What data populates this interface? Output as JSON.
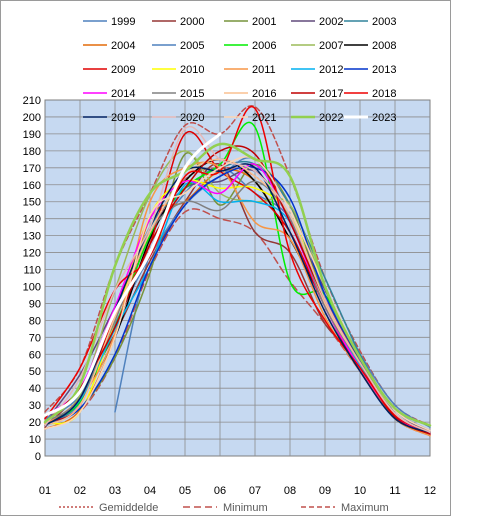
{
  "chart_data": {
    "type": "line",
    "title": "",
    "xlabel": "",
    "ylabel": "",
    "x_categories": [
      "01",
      "02",
      "03",
      "04",
      "05",
      "06",
      "07",
      "08",
      "09",
      "10",
      "11",
      "12"
    ],
    "ylim": [
      0,
      210
    ],
    "y_ticks": [
      "0",
      "10",
      "20",
      "30",
      "40",
      "50",
      "60",
      "70",
      "80",
      "90",
      "100",
      "110",
      "120",
      "130",
      "140",
      "150",
      "160",
      "170",
      "180",
      "190",
      "200",
      "210"
    ],
    "grid": true,
    "plot_background": "#c6d9f1",
    "legend_position": "top (inside plot, 3 columns x 5 rows) and bottom for statistics",
    "series": [
      {
        "name": "1999",
        "color": "#4f81bd",
        "dash": "",
        "width": 1.5,
        "values": [
          null,
          null,
          26,
          120,
          155,
          170,
          155,
          140,
          95,
          60,
          30,
          17
        ]
      },
      {
        "name": "2000",
        "color": "#953735",
        "dash": "",
        "width": 1.5,
        "values": [
          17,
          38,
          72,
          115,
          150,
          172,
          132,
          120,
          78,
          58,
          25,
          12
        ]
      },
      {
        "name": "2001",
        "color": "#77933c",
        "dash": "",
        "width": 1.5,
        "values": [
          18,
          28,
          58,
          108,
          178,
          148,
          172,
          148,
          92,
          52,
          22,
          13
        ]
      },
      {
        "name": "2002",
        "color": "#604a7b",
        "dash": "",
        "width": 1.5,
        "values": [
          20,
          48,
          88,
          132,
          158,
          162,
          168,
          140,
          98,
          58,
          27,
          14
        ]
      },
      {
        "name": "2003",
        "color": "#31849b",
        "dash": "",
        "width": 1.5,
        "values": [
          19,
          32,
          85,
          135,
          158,
          170,
          172,
          148,
          105,
          60,
          25,
          14
        ]
      },
      {
        "name": "2004",
        "color": "#e46c0a",
        "dash": "",
        "width": 1.5,
        "values": [
          16,
          27,
          70,
          140,
          150,
          168,
          162,
          128,
          92,
          52,
          24,
          13
        ]
      },
      {
        "name": "2005",
        "color": "#4f81bd",
        "dash": "",
        "width": 1.5,
        "values": [
          22,
          36,
          78,
          118,
          148,
          165,
          175,
          140,
          92,
          55,
          27,
          15
        ]
      },
      {
        "name": "2006",
        "color": "#00ee00",
        "dash": "",
        "width": 1.5,
        "values": [
          20,
          32,
          76,
          130,
          158,
          172,
          194,
          103,
          95,
          55,
          25,
          13
        ]
      },
      {
        "name": "2007",
        "color": "#9bbb59",
        "dash": "",
        "width": 1.5,
        "values": [
          18,
          36,
          98,
          154,
          180,
          155,
          150,
          148,
          100,
          58,
          25,
          14
        ]
      },
      {
        "name": "2008",
        "color": "#000000",
        "dash": "",
        "width": 1.5,
        "values": [
          18,
          34,
          70,
          128,
          162,
          175,
          162,
          128,
          90,
          55,
          24,
          14
        ]
      },
      {
        "name": "2009",
        "color": "#e00000",
        "dash": "",
        "width": 1.5,
        "values": [
          20,
          30,
          84,
          125,
          190,
          168,
          155,
          132,
          88,
          50,
          23,
          13
        ]
      },
      {
        "name": "2010",
        "color": "#ffff00",
        "dash": "",
        "width": 1.5,
        "values": [
          19,
          26,
          80,
          142,
          162,
          158,
          158,
          142,
          92,
          54,
          24,
          13
        ]
      },
      {
        "name": "2011",
        "color": "#f79646",
        "dash": "",
        "width": 1.5,
        "values": [
          19,
          34,
          72,
          150,
          170,
          170,
          138,
          128,
          82,
          50,
          22,
          12
        ]
      },
      {
        "name": "2012",
        "color": "#00b0f0",
        "dash": "",
        "width": 1.5,
        "values": [
          18,
          33,
          75,
          112,
          160,
          150,
          150,
          138,
          88,
          53,
          24,
          13
        ]
      },
      {
        "name": "2013",
        "color": "#0033cc",
        "dash": "",
        "width": 1.5,
        "values": [
          18,
          28,
          60,
          112,
          148,
          165,
          170,
          152,
          95,
          57,
          24,
          14
        ]
      },
      {
        "name": "2014",
        "color": "#ff00ff",
        "dash": "",
        "width": 1.5,
        "values": [
          24,
          40,
          88,
          140,
          162,
          155,
          172,
          138,
          88,
          52,
          24,
          13
        ]
      },
      {
        "name": "2015",
        "color": "#808080",
        "dash": "",
        "width": 1.5,
        "values": [
          20,
          34,
          80,
          132,
          150,
          145,
          162,
          140,
          88,
          55,
          25,
          14
        ]
      },
      {
        "name": "2016",
        "color": "#fac090",
        "dash": "",
        "width": 1.5,
        "values": [
          18,
          30,
          82,
          132,
          165,
          175,
          165,
          142,
          90,
          55,
          25,
          14
        ]
      },
      {
        "name": "2017",
        "color": "#c00000",
        "dash": "",
        "width": 1.5,
        "values": [
          20,
          40,
          76,
          125,
          158,
          180,
          178,
          138,
          92,
          55,
          23,
          13
        ]
      },
      {
        "name": "2018",
        "color": "#ee0000",
        "dash": "",
        "width": 1.5,
        "values": [
          22,
          52,
          98,
          118,
          165,
          168,
          205,
          120,
          80,
          52,
          24,
          14
        ]
      },
      {
        "name": "2019",
        "color": "#002060",
        "dash": "",
        "width": 1.5,
        "values": [
          18,
          34,
          86,
          135,
          168,
          168,
          170,
          132,
          85,
          50,
          22,
          14
        ]
      },
      {
        "name": "2020",
        "color": "#e6b9b8",
        "dash": "",
        "width": 1.5,
        "values": [
          18,
          46,
          98,
          135,
          193,
          175,
          168,
          142,
          92,
          55,
          25,
          14
        ]
      },
      {
        "name": "2021",
        "color": "#fcd5b4",
        "dash": "",
        "width": 1.5,
        "values": [
          16,
          26,
          70,
          142,
          155,
          170,
          175,
          145,
          100,
          58,
          27,
          15
        ]
      },
      {
        "name": "2022",
        "color": "#92d050",
        "dash": "",
        "width": 2.5,
        "values": [
          20,
          42,
          112,
          155,
          168,
          184,
          175,
          165,
          100,
          58,
          28,
          18
        ]
      },
      {
        "name": "2023",
        "color": "#ffffff",
        "dash": "",
        "width": 3,
        "values": [
          24,
          38,
          85,
          120,
          170,
          190,
          null,
          null,
          null,
          null,
          null,
          null
        ]
      },
      {
        "name": "Gemiddelde",
        "color": "#c0504d",
        "dash": "2,2",
        "width": 1.5,
        "values": [
          20,
          34,
          80,
          130,
          163,
          170,
          165,
          140,
          92,
          55,
          25,
          14
        ]
      },
      {
        "name": "Minimum",
        "color": "#c0504d",
        "dash": "7,4",
        "width": 1.5,
        "values": [
          16,
          26,
          58,
          110,
          144,
          140,
          132,
          103,
          78,
          50,
          22,
          12
        ]
      },
      {
        "name": "Maximum",
        "color": "#c0504d",
        "dash": "5,3",
        "width": 1.5,
        "values": [
          26,
          52,
          112,
          155,
          195,
          190,
          206,
          165,
          105,
          62,
          30,
          18
        ]
      }
    ]
  }
}
